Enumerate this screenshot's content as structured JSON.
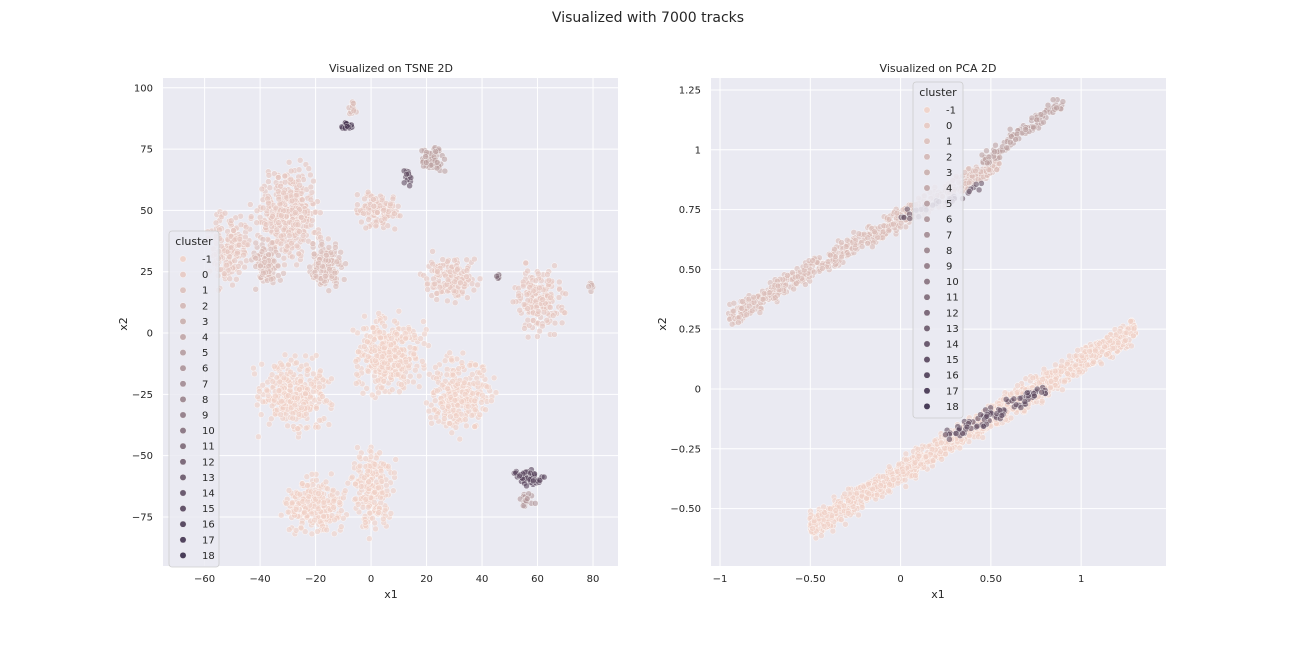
{
  "figure": {
    "suptitle": "Visualized with 7000 tracks"
  },
  "palette": {
    "background": "#eaeaf2",
    "grid": "#ffffff",
    "text": "#262626",
    "cluster_light": "#f0d0c6",
    "cluster_dark": "#2d1e3e"
  },
  "legend": {
    "title": "cluster",
    "entries": [
      "-1",
      "0",
      "1",
      "2",
      "3",
      "4",
      "5",
      "6",
      "7",
      "8",
      "9",
      "10",
      "11",
      "12",
      "13",
      "14",
      "15",
      "16",
      "17",
      "18"
    ]
  },
  "chart_data": [
    {
      "type": "scatter",
      "title": "Visualized on TSNE 2D",
      "xlabel": "x1",
      "ylabel": "x2",
      "xlim": [
        -75,
        89
      ],
      "ylim": [
        -95,
        104
      ],
      "xticks": [
        -60,
        -40,
        -20,
        0,
        20,
        40,
        60,
        80
      ],
      "yticks": [
        -75,
        -50,
        -25,
        0,
        25,
        50,
        75,
        100
      ],
      "grid": true,
      "legend_position": "center-left",
      "hue": "cluster",
      "regions": [
        {
          "x": [
            -45,
            -15
          ],
          "y": [
            25,
            75
          ],
          "cluster": "0",
          "n": 420
        },
        {
          "x": [
            -25,
            -8
          ],
          "y": [
            15,
            40
          ],
          "cluster": "1",
          "n": 140
        },
        {
          "x": [
            -62,
            -40
          ],
          "y": [
            15,
            55
          ],
          "cluster": "0",
          "n": 160
        },
        {
          "x": [
            -45,
            -30
          ],
          "y": [
            15,
            40
          ],
          "cluster": "1",
          "n": 110
        },
        {
          "x": [
            -45,
            -10
          ],
          "y": [
            -45,
            -5
          ],
          "cluster": "-1",
          "n": 300
        },
        {
          "x": [
            -10,
            22
          ],
          "y": [
            -30,
            12
          ],
          "cluster": "-1",
          "n": 380
        },
        {
          "x": [
            15,
            48
          ],
          "y": [
            -45,
            -5
          ],
          "cluster": "-1",
          "n": 260
        },
        {
          "x": [
            -35,
            -5
          ],
          "y": [
            -85,
            -55
          ],
          "cluster": "-1",
          "n": 240
        },
        {
          "x": [
            -10,
            10
          ],
          "y": [
            -85,
            -40
          ],
          "cluster": "-1",
          "n": 200
        },
        {
          "x": [
            15,
            42
          ],
          "y": [
            10,
            35
          ],
          "cluster": "0",
          "n": 150
        },
        {
          "x": [
            48,
            72
          ],
          "y": [
            -5,
            32
          ],
          "cluster": "0",
          "n": 200
        },
        {
          "x": [
            -8,
            14
          ],
          "y": [
            40,
            60
          ],
          "cluster": "0",
          "n": 120
        },
        {
          "x": [
            16,
            28
          ],
          "y": [
            64,
            77
          ],
          "cluster": "4",
          "n": 70
        },
        {
          "x": [
            10,
            16
          ],
          "y": [
            55,
            70
          ],
          "cluster": "13",
          "n": 12
        },
        {
          "x": [
            -12,
            -6
          ],
          "y": [
            82,
            87
          ],
          "cluster": "16",
          "n": 14
        },
        {
          "x": [
            -10,
            -4
          ],
          "y": [
            88,
            95
          ],
          "cluster": "1",
          "n": 12
        },
        {
          "x": [
            48,
            65
          ],
          "y": [
            -63,
            -55
          ],
          "cluster": "14",
          "n": 50
        },
        {
          "x": [
            52,
            60
          ],
          "y": [
            -72,
            -64
          ],
          "cluster": "5",
          "n": 18
        },
        {
          "x": [
            44,
            47
          ],
          "y": [
            21,
            24
          ],
          "cluster": "10",
          "n": 5
        },
        {
          "x": [
            77,
            82
          ],
          "y": [
            16,
            22
          ],
          "cluster": "2",
          "n": 6
        }
      ]
    },
    {
      "type": "scatter",
      "title": "Visualized on PCA 2D",
      "xlabel": "x1",
      "ylabel": "x2",
      "xlim": [
        -1.05,
        1.47
      ],
      "ylim": [
        -0.74,
        1.3
      ],
      "xticks": [
        -1.0,
        -0.5,
        0.0,
        0.5,
        1.0
      ],
      "yticks": [
        -0.5,
        -0.25,
        0.0,
        0.25,
        0.5,
        0.75,
        1.0,
        1.25
      ],
      "grid": true,
      "legend_position": "upper-center",
      "hue": "cluster",
      "regions": [
        {
          "x0": -0.95,
          "y0": 0.3,
          "x1": 0.55,
          "y1": 0.95,
          "width": 0.13,
          "cluster": "1",
          "n": 650
        },
        {
          "x0": 0.45,
          "y0": 0.95,
          "x1": 0.9,
          "y1": 1.2,
          "width": 0.1,
          "cluster": "4",
          "n": 110
        },
        {
          "x0": -0.5,
          "y0": -0.58,
          "x1": 1.3,
          "y1": 0.25,
          "width": 0.16,
          "cluster": "-1",
          "n": 1200
        },
        {
          "x0": 0.25,
          "y0": -0.2,
          "x1": 0.8,
          "y1": 0.0,
          "width": 0.1,
          "cluster": "13",
          "n": 90
        },
        {
          "x0": 0.0,
          "y0": 0.72,
          "x1": 0.45,
          "y1": 0.85,
          "width": 0.08,
          "cluster": "12",
          "n": 30
        }
      ]
    }
  ]
}
